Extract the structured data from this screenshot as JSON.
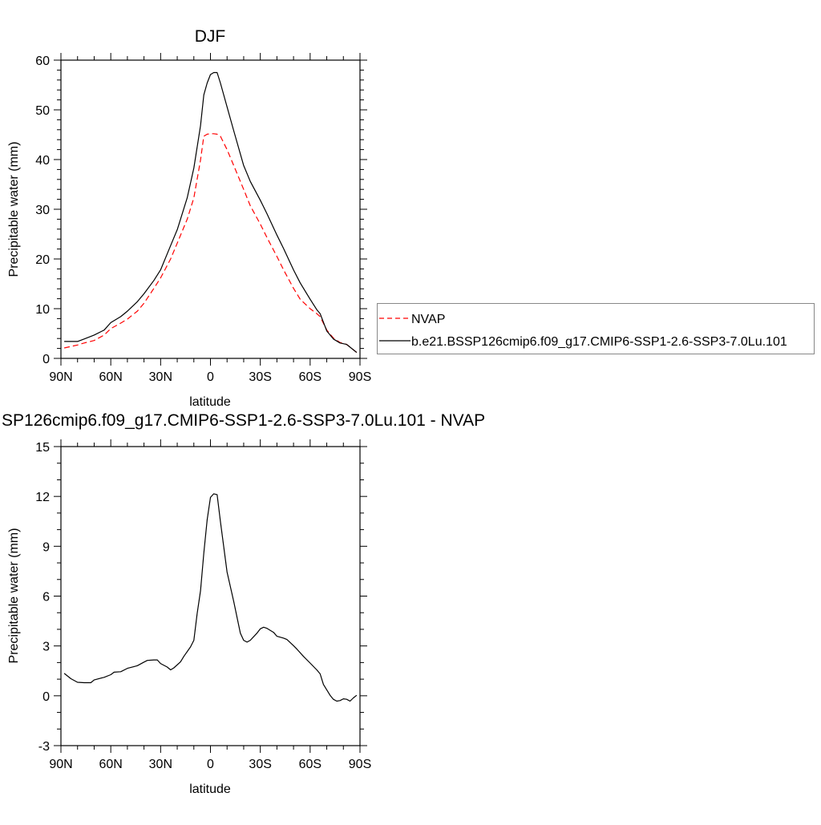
{
  "chart_data": [
    {
      "type": "line",
      "title": "DJF",
      "xlabel": "latitude",
      "ylabel": "Precipitable water (mm)",
      "xlim": [
        90,
        -90
      ],
      "ylim": [
        0,
        60
      ],
      "x_ticks": [
        90,
        60,
        30,
        0,
        -30,
        -60,
        -90
      ],
      "x_tick_labels": [
        "90N",
        "60N",
        "30N",
        "0",
        "30S",
        "60S",
        "90S"
      ],
      "y_ticks": [
        0,
        10,
        20,
        30,
        40,
        50,
        60
      ],
      "y_tick_labels": [
        "0",
        "10",
        "20",
        "30",
        "40",
        "50",
        "60"
      ],
      "grid": false,
      "legend": "right",
      "x": [
        88,
        80,
        76,
        70,
        64,
        60,
        54,
        50,
        44,
        40,
        34,
        30,
        24,
        20,
        14,
        10,
        6,
        4,
        2,
        0,
        -2,
        -4,
        -6,
        -10,
        -14,
        -20,
        -24,
        -30,
        -34,
        -40,
        -44,
        -50,
        -54,
        -60,
        -64,
        -66,
        -70,
        -74,
        -78,
        -82,
        -88
      ],
      "series": [
        {
          "name": "NVAP",
          "color": "#ff0000",
          "dash": "dashed",
          "values": [
            2.1,
            2.7,
            3.1,
            3.6,
            4.7,
            6.0,
            7.1,
            7.9,
            9.5,
            11.1,
            14.1,
            16.2,
            20.0,
            23.2,
            28.0,
            32.3,
            39.9,
            44.7,
            45.1,
            45.2,
            45.2,
            45.1,
            44.7,
            42.0,
            38.8,
            34.0,
            30.7,
            27.0,
            24.3,
            20.5,
            17.8,
            14.1,
            11.9,
            10.0,
            9.0,
            8.4,
            5.7,
            4.1,
            3.2,
            2.8,
            1.2
          ]
        },
        {
          "name": "b.e21.BSSP126cmip6.f09_g17.CMIP6-SSP1-2.6-SSP3-7.0Lu.101",
          "color": "#000000",
          "dash": "solid",
          "values": [
            3.4,
            3.4,
            3.9,
            4.7,
            5.7,
            7.2,
            8.4,
            9.5,
            11.4,
            13.0,
            15.7,
            17.8,
            22.7,
            25.9,
            32.3,
            38.3,
            46.8,
            53.0,
            55.4,
            57.1,
            57.5,
            57.5,
            55.4,
            50.6,
            45.8,
            38.8,
            35.6,
            31.8,
            29.1,
            24.8,
            22.1,
            17.8,
            15.2,
            11.9,
            9.8,
            9.0,
            5.5,
            3.9,
            3.1,
            2.8,
            1.2
          ]
        }
      ]
    },
    {
      "type": "line",
      "title": "SP126cmip6.f09_g17.CMIP6-SSP1-2.6-SSP3-7.0Lu.101 - NVAP",
      "xlabel": "latitude",
      "ylabel": "Precipitable water (mm)",
      "xlim": [
        90,
        -90
      ],
      "ylim": [
        -3,
        15
      ],
      "x_ticks": [
        90,
        60,
        30,
        0,
        -30,
        -60,
        -90
      ],
      "x_tick_labels": [
        "90N",
        "60N",
        "30N",
        "0",
        "30S",
        "60S",
        "90S"
      ],
      "y_ticks": [
        -3,
        0,
        3,
        6,
        9,
        12,
        15
      ],
      "y_tick_labels": [
        "-3",
        "0",
        "3",
        "6",
        "9",
        "12",
        "15"
      ],
      "grid": false,
      "x": [
        88,
        84,
        80,
        76,
        72,
        70,
        64,
        60,
        58,
        54,
        50,
        46,
        44,
        40,
        38,
        34,
        32,
        30,
        26,
        24,
        22,
        18,
        16,
        12,
        10,
        8,
        6,
        4,
        2,
        0,
        -2,
        -4,
        -6,
        -10,
        -14,
        -16,
        -18,
        -20,
        -22,
        -24,
        -28,
        -30,
        -32,
        -34,
        -38,
        -40,
        -44,
        -46,
        -50,
        -52,
        -56,
        -60,
        -64,
        -66,
        -68,
        -72,
        -74,
        -76,
        -78,
        -80,
        -82,
        -84,
        -86,
        -88
      ],
      "series": [
        {
          "color": "#000000",
          "dash": "solid",
          "values": [
            1.35,
            1.03,
            0.81,
            0.79,
            0.79,
            0.95,
            1.11,
            1.27,
            1.42,
            1.45,
            1.65,
            1.76,
            1.81,
            2.03,
            2.13,
            2.16,
            2.16,
            1.94,
            1.73,
            1.56,
            1.68,
            2.05,
            2.37,
            2.94,
            3.34,
            4.95,
            6.32,
            8.58,
            10.6,
            11.94,
            12.16,
            12.11,
            10.5,
            7.45,
            5.68,
            4.71,
            3.77,
            3.34,
            3.23,
            3.34,
            3.77,
            4.03,
            4.13,
            4.06,
            3.82,
            3.58,
            3.47,
            3.39,
            3.02,
            2.81,
            2.37,
            1.97,
            1.56,
            1.32,
            0.68,
            0.03,
            -0.21,
            -0.32,
            -0.29,
            -0.18,
            -0.21,
            -0.32,
            -0.13,
            0.03
          ]
        }
      ]
    }
  ]
}
